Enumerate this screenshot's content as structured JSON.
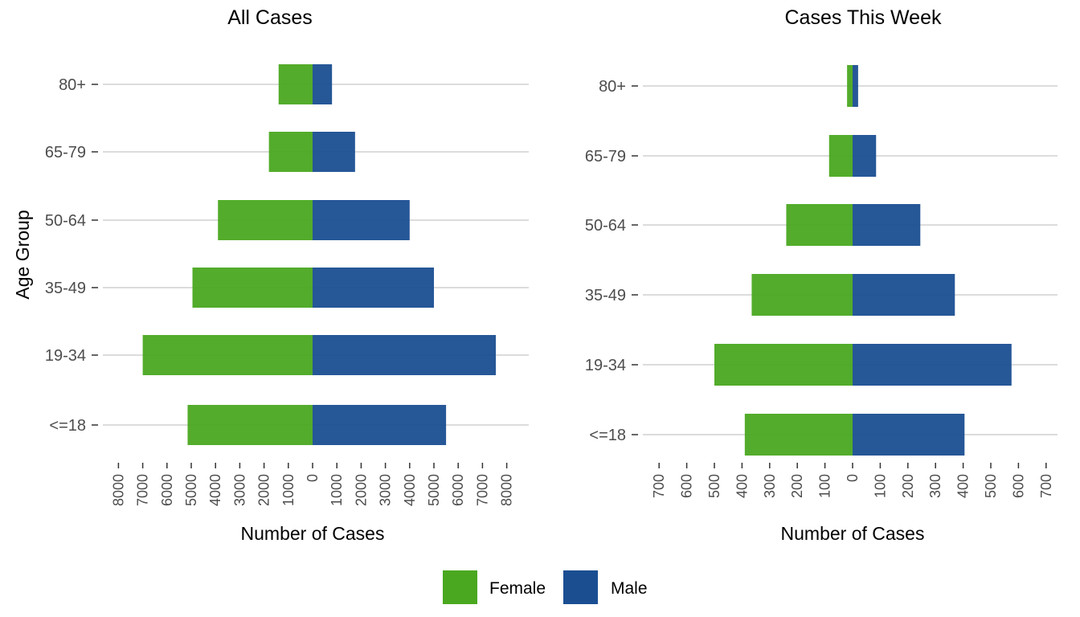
{
  "chart_data": [
    {
      "type": "bar",
      "orientation": "horizontal-population-pyramid",
      "title": "All Cases",
      "xlabel": "Number of Cases",
      "ylabel": "Age Group",
      "categories": [
        "80+",
        "65-79",
        "50-64",
        "35-49",
        "19-34",
        "<=18"
      ],
      "series": [
        {
          "name": "Female",
          "values": [
            1400,
            1800,
            3900,
            4950,
            7000,
            5150
          ]
        },
        {
          "name": "Male",
          "values": [
            800,
            1750,
            4000,
            5000,
            7550,
            5500
          ]
        }
      ],
      "xticks": [
        "8000",
        "7000",
        "6000",
        "5000",
        "4000",
        "3000",
        "2000",
        "1000",
        "0",
        "1000",
        "2000",
        "3000",
        "4000",
        "5000",
        "6000",
        "7000",
        "8000"
      ],
      "xlim": [
        -8000,
        8000
      ],
      "grid": "horizontal only"
    },
    {
      "type": "bar",
      "orientation": "horizontal-population-pyramid",
      "title": "Cases This Week",
      "xlabel": "Number of Cases",
      "ylabel": "",
      "categories": [
        "80+",
        "65-79",
        "50-64",
        "35-49",
        "19-34",
        "<=18"
      ],
      "series": [
        {
          "name": "Female",
          "values": [
            20,
            85,
            240,
            365,
            500,
            390
          ]
        },
        {
          "name": "Male",
          "values": [
            20,
            85,
            245,
            370,
            575,
            405
          ]
        }
      ],
      "xticks": [
        "700",
        "600",
        "500",
        "400",
        "300",
        "200",
        "100",
        "0",
        "100",
        "200",
        "300",
        "400",
        "500",
        "600",
        "700"
      ],
      "xlim": [
        -700,
        700
      ],
      "grid": "horizontal only"
    }
  ],
  "legend": {
    "position": "bottom",
    "items": [
      {
        "label": "Female",
        "color": "#4aa820"
      },
      {
        "label": "Male",
        "color": "#1a4e91"
      }
    ]
  },
  "colors": {
    "female": "#4aa820",
    "male": "#1a4e91"
  }
}
